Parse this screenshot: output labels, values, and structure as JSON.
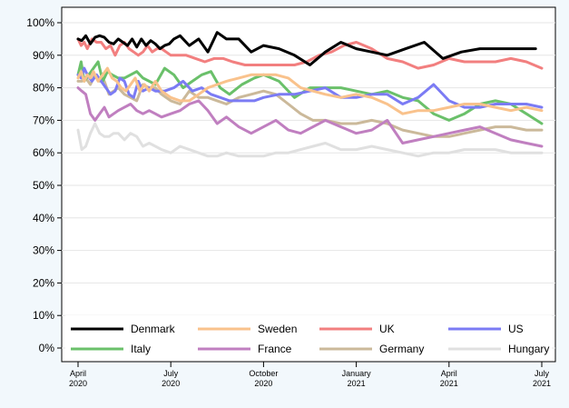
{
  "chart_data": {
    "type": "line",
    "title": "",
    "xlabel": "",
    "ylabel": "",
    "ylim": [
      0,
      100
    ],
    "y_ticks": [
      0,
      10,
      20,
      30,
      40,
      50,
      60,
      70,
      80,
      90,
      100
    ],
    "y_tick_labels": [
      "0%",
      "10%",
      "20%",
      "30%",
      "40%",
      "50%",
      "60%",
      "70%",
      "80%",
      "90%",
      "100%"
    ],
    "xlim": [
      0,
      15
    ],
    "x_ticks": [
      {
        "month": "April",
        "year": "2020",
        "t": 0
      },
      {
        "month": "July",
        "year": "2020",
        "t": 3
      },
      {
        "month": "October",
        "year": "2020",
        "t": 6
      },
      {
        "month": "January",
        "year": "2021",
        "t": 9
      },
      {
        "month": "April",
        "year": "2021",
        "t": 12
      },
      {
        "month": "July",
        "year": "2021",
        "t": 15
      }
    ],
    "grid": true,
    "legend_position": "bottom-inside",
    "series": [
      {
        "name": "Denmark",
        "color": "#000000",
        "width": 3,
        "x": [
          0,
          0.12,
          0.25,
          0.4,
          0.55,
          0.7,
          0.85,
          1.0,
          1.15,
          1.3,
          1.45,
          1.6,
          1.75,
          1.9,
          2.05,
          2.2,
          2.35,
          2.5,
          2.65,
          2.8,
          2.95,
          3.1,
          3.3,
          3.6,
          3.9,
          4.2,
          4.5,
          4.8,
          5.2,
          5.6,
          6.0,
          6.5,
          7.0,
          7.5,
          8.0,
          8.5,
          9.0,
          9.5,
          10.0,
          10.6,
          11.2,
          11.8,
          12.4,
          13.0,
          13.6,
          14.2,
          14.8
        ],
        "y": [
          95,
          94.5,
          96,
          93.5,
          95.5,
          96,
          95.5,
          94,
          93.5,
          95,
          94,
          93,
          95,
          92.5,
          95,
          93,
          94.5,
          93.5,
          92,
          93,
          93.5,
          95,
          96,
          93,
          95,
          91,
          97,
          95,
          95,
          91,
          93,
          92,
          90,
          87,
          91,
          94,
          92,
          91,
          90,
          92,
          94,
          89,
          91,
          92,
          92,
          92,
          92
        ]
      },
      {
        "name": "Sweden",
        "color": "#f9c28c",
        "width": 3,
        "x": [
          0,
          0.1,
          0.2,
          0.3,
          0.4,
          0.5,
          0.65,
          0.8,
          0.95,
          1.1,
          1.25,
          1.4,
          1.55,
          1.7,
          1.85,
          2.0,
          2.15,
          2.3,
          2.5,
          2.7,
          3.0,
          3.3,
          3.6,
          3.9,
          4.2,
          4.5,
          4.8,
          5.2,
          5.6,
          6.0,
          6.4,
          6.8,
          7.2,
          7.6,
          8.0,
          8.5,
          9.0,
          9.5,
          10.0,
          10.5,
          11.0,
          11.5,
          12.0,
          12.5,
          13.0,
          13.5,
          14.0,
          14.5,
          15.0
        ],
        "y": [
          83,
          85,
          82,
          84,
          83,
          85,
          82,
          84,
          86,
          83,
          82,
          80,
          79,
          81,
          83,
          79,
          81,
          79,
          82,
          79,
          77,
          76,
          76,
          78,
          80,
          81,
          82,
          83,
          84,
          84,
          84,
          83,
          80,
          79,
          78,
          77,
          78,
          77,
          75,
          72,
          73,
          73,
          74,
          75,
          75,
          74,
          73,
          74,
          73
        ]
      },
      {
        "name": "UK",
        "color": "#f27f7f",
        "width": 3,
        "x": [
          0,
          0.1,
          0.2,
          0.3,
          0.45,
          0.6,
          0.75,
          0.9,
          1.05,
          1.2,
          1.35,
          1.5,
          1.65,
          1.8,
          1.95,
          2.1,
          2.25,
          2.4,
          2.55,
          2.7,
          2.85,
          3.0,
          3.2,
          3.5,
          3.8,
          4.1,
          4.4,
          4.7,
          5.0,
          5.4,
          5.8,
          6.2,
          6.6,
          7.0,
          7.4,
          7.8,
          8.2,
          8.6,
          9.0,
          9.5,
          10.0,
          10.5,
          11.0,
          11.5,
          12.0,
          12.5,
          13.0,
          13.5,
          14.0,
          14.5,
          15.0
        ],
        "y": [
          95,
          93,
          94,
          92,
          95,
          94,
          94,
          92,
          93,
          90,
          93,
          94,
          92,
          91,
          90,
          91,
          93,
          91,
          92,
          92,
          91,
          90,
          90,
          90,
          89,
          88,
          89,
          89,
          88,
          87,
          87,
          87,
          87,
          87,
          88,
          90,
          91,
          93,
          94,
          92,
          89,
          88,
          86,
          87,
          89,
          88,
          88,
          88,
          89,
          88,
          86
        ]
      },
      {
        "name": "US",
        "color": "#7b7bf4",
        "width": 3,
        "x": [
          0,
          0.1,
          0.2,
          0.3,
          0.45,
          0.6,
          0.75,
          0.9,
          1.05,
          1.2,
          1.35,
          1.5,
          1.65,
          1.8,
          1.95,
          2.1,
          2.3,
          2.5,
          2.8,
          3.1,
          3.4,
          3.7,
          4.0,
          4.3,
          4.6,
          4.9,
          5.3,
          5.7,
          6.0,
          6.5,
          7.0,
          7.5,
          8.0,
          8.5,
          9.0,
          9.5,
          10.0,
          10.5,
          11.0,
          11.5,
          12.0,
          12.5,
          13.0,
          13.5,
          14.0,
          14.5,
          15.0
        ],
        "y": [
          84,
          83,
          86,
          84,
          82,
          84,
          82,
          80,
          78,
          79,
          83,
          82,
          78,
          77,
          82,
          79,
          80,
          79,
          79,
          80,
          82,
          79,
          80,
          78,
          77,
          76,
          76,
          76,
          77,
          78,
          78,
          79,
          80,
          77,
          77,
          78,
          78,
          75,
          77,
          81,
          76,
          74,
          74,
          75,
          75,
          75,
          74
        ]
      },
      {
        "name": "Italy",
        "color": "#6ac06a",
        "width": 3,
        "x": [
          0,
          0.1,
          0.2,
          0.35,
          0.5,
          0.65,
          0.8,
          0.95,
          1.1,
          1.3,
          1.5,
          1.7,
          1.9,
          2.1,
          2.3,
          2.5,
          2.8,
          3.1,
          3.4,
          3.7,
          4.0,
          4.3,
          4.6,
          4.9,
          5.3,
          5.7,
          6.0,
          6.5,
          7.0,
          7.5,
          8.0,
          8.5,
          9.0,
          9.5,
          10.0,
          10.5,
          11.0,
          11.5,
          12.0,
          12.5,
          13.0,
          13.5,
          14.0,
          14.5,
          15.0
        ],
        "y": [
          84,
          88,
          82,
          84,
          86,
          88,
          82,
          85,
          84,
          83,
          83,
          84,
          85,
          83,
          82,
          81,
          86,
          84,
          80,
          82,
          84,
          85,
          80,
          78,
          81,
          83,
          84,
          82,
          77,
          80,
          80,
          80,
          79,
          78,
          79,
          77,
          76,
          72,
          70,
          72,
          75,
          76,
          75,
          72,
          69
        ]
      },
      {
        "name": "France",
        "color": "#c07fc0",
        "width": 3,
        "x": [
          0,
          0.12,
          0.25,
          0.4,
          0.55,
          0.7,
          0.85,
          1.0,
          1.15,
          1.3,
          1.5,
          1.7,
          1.9,
          2.1,
          2.3,
          2.5,
          2.7,
          3.0,
          3.3,
          3.6,
          3.9,
          4.2,
          4.5,
          4.8,
          5.2,
          5.6,
          6.0,
          6.4,
          6.8,
          7.2,
          7.6,
          8.0,
          8.5,
          9.0,
          9.5,
          10.0,
          10.5,
          11.0,
          11.5,
          12.0,
          12.5,
          13.0,
          13.5,
          14.0,
          14.5,
          15.0
        ],
        "y": [
          80,
          79,
          78,
          72,
          70,
          72,
          74,
          71,
          72,
          73,
          74,
          75,
          73,
          72,
          73,
          72,
          71,
          72,
          73,
          75,
          76,
          73,
          69,
          71,
          68,
          66,
          68,
          70,
          67,
          66,
          68,
          70,
          68,
          66,
          67,
          70,
          63,
          64,
          65,
          66,
          67,
          68,
          66,
          64,
          63,
          62
        ]
      },
      {
        "name": "Germany",
        "color": "#cbb99a",
        "width": 3,
        "x": [
          0,
          0.12,
          0.25,
          0.4,
          0.55,
          0.7,
          0.85,
          1.0,
          1.15,
          1.3,
          1.5,
          1.7,
          1.9,
          2.1,
          2.3,
          2.5,
          2.7,
          3.0,
          3.3,
          3.6,
          3.9,
          4.2,
          4.5,
          4.8,
          5.2,
          5.6,
          6.0,
          6.4,
          6.8,
          7.2,
          7.6,
          8.0,
          8.5,
          9.0,
          9.5,
          10.0,
          10.5,
          11.0,
          11.5,
          12.0,
          12.5,
          13.0,
          13.5,
          14.0,
          14.5,
          15.0
        ],
        "y": [
          82,
          82,
          83,
          81,
          84,
          82,
          82,
          78,
          79,
          80,
          78,
          77,
          76,
          81,
          80,
          80,
          78,
          76,
          75,
          79,
          77,
          77,
          76,
          75,
          77,
          78,
          79,
          78,
          75,
          72,
          70,
          70,
          69,
          69,
          70,
          69,
          67,
          66,
          65,
          65,
          66,
          67,
          68,
          68,
          67,
          67
        ]
      },
      {
        "name": "Hungary",
        "color": "#e0e0e0",
        "width": 3,
        "x": [
          0,
          0.12,
          0.25,
          0.4,
          0.55,
          0.7,
          0.85,
          1.0,
          1.15,
          1.3,
          1.5,
          1.7,
          1.9,
          2.1,
          2.3,
          2.5,
          2.7,
          3.0,
          3.3,
          3.6,
          3.9,
          4.2,
          4.5,
          4.8,
          5.2,
          5.6,
          6.0,
          6.4,
          6.8,
          7.2,
          7.6,
          8.0,
          8.5,
          9.0,
          9.5,
          10.0,
          10.5,
          11.0,
          11.5,
          12.0,
          12.5,
          13.0,
          13.5,
          14.0,
          14.5,
          15.0
        ],
        "y": [
          67,
          61,
          62,
          66,
          69,
          66,
          65,
          65,
          66,
          66,
          64,
          66,
          65,
          62,
          63,
          62,
          61,
          60,
          62,
          61,
          60,
          59,
          59,
          60,
          59,
          59,
          59,
          60,
          60,
          61,
          62,
          63,
          61,
          61,
          62,
          61,
          60,
          59,
          60,
          60,
          61,
          61,
          61,
          60,
          60,
          60
        ]
      }
    ]
  }
}
